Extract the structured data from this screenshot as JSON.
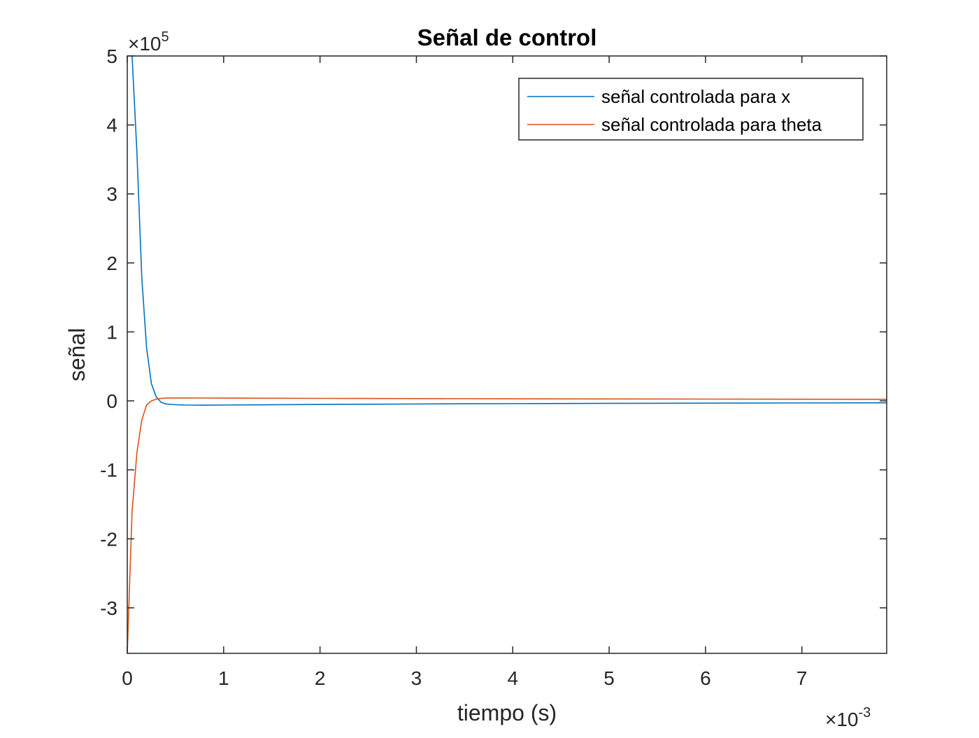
{
  "chart_data": {
    "type": "line",
    "title": "Señal de control",
    "xlabel": "tiempo (s)",
    "ylabel": "señal",
    "x_multiplier": {
      "prefix": "×10",
      "exponent": "-3"
    },
    "y_multiplier": {
      "prefix": "×10",
      "exponent": "5"
    },
    "xlim": [
      0,
      0.00788
    ],
    "ylim": [
      -366000,
      500000
    ],
    "xticks": [
      0,
      0.001,
      0.002,
      0.003,
      0.004,
      0.005,
      0.006,
      0.007
    ],
    "xtick_labels": [
      "0",
      "1",
      "2",
      "3",
      "4",
      "5",
      "6",
      "7"
    ],
    "yticks": [
      -300000,
      -200000,
      -100000,
      0,
      100000,
      200000,
      300000,
      400000,
      500000
    ],
    "ytick_labels": [
      "-3",
      "-2",
      "-1",
      "0",
      "1",
      "2",
      "3",
      "4",
      "5"
    ],
    "grid": false,
    "legend_position": "top-right",
    "series": [
      {
        "name": "señal controlada para x",
        "color": "#0072BD",
        "x": [
          5e-05,
          0.0001,
          0.00015,
          0.0002,
          0.00025,
          0.0003,
          0.00035,
          0.0004,
          0.0005,
          0.0006,
          0.0008,
          0.001,
          0.0015,
          0.002,
          0.003,
          0.004,
          0.005,
          0.006,
          0.007,
          0.00788
        ],
        "y": [
          500000,
          360000,
          180000,
          77000,
          25000,
          6000,
          -2000,
          -4500,
          -5500,
          -6000,
          -6200,
          -6000,
          -5600,
          -5200,
          -4500,
          -4000,
          -3600,
          -3300,
          -3000,
          -2800
        ]
      },
      {
        "name": "señal controlada para theta",
        "color": "#D95319",
        "x": [
          0.0,
          5e-05,
          0.0001,
          0.00015,
          0.0002,
          0.00025,
          0.0003,
          0.00035,
          0.0004,
          0.0005,
          0.0006,
          0.0008,
          0.001,
          0.0015,
          0.002,
          0.003,
          0.004,
          0.005,
          0.006,
          0.007,
          0.00788
        ],
        "y": [
          -366000,
          -160000,
          -75000,
          -28000,
          -6000,
          0,
          2500,
          3500,
          4000,
          4200,
          4200,
          4100,
          4000,
          3800,
          3600,
          3300,
          3000,
          2800,
          2600,
          2400,
          2300
        ]
      }
    ]
  }
}
